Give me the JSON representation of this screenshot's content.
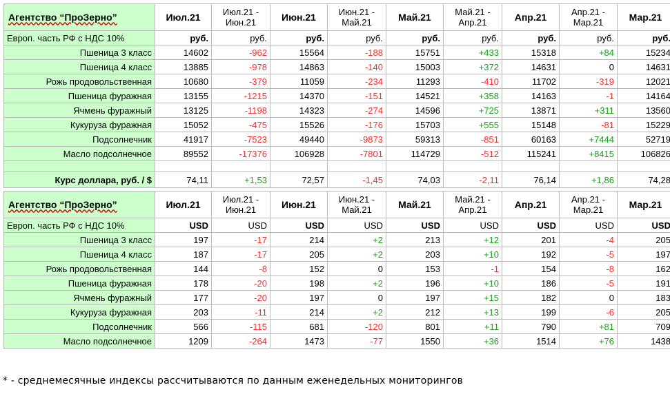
{
  "header": {
    "agency": "Агентство “ПроЗерно”",
    "columns": [
      "Июл.21",
      "Июл.21 -\nИюн.21",
      "Июн.21",
      "Июн.21 -\nМай.21",
      "Май.21",
      "Май.21 -\nАпр.21",
      "Апр.21",
      "Апр.21 -\nМар.21",
      "Мар.21"
    ]
  },
  "region_label": "Европ. часть РФ с НДС 10%",
  "rub_table": {
    "units": [
      "руб.",
      "руб.",
      "руб.",
      "руб.",
      "руб.",
      "руб.",
      "руб.",
      "руб.",
      "руб."
    ],
    "rows": [
      {
        "name": "Пшеница 3 класс",
        "cells": [
          "14602",
          "-962",
          "15564",
          "-188",
          "15751",
          "+433",
          "15318",
          "+84",
          "15234"
        ]
      },
      {
        "name": "Пшеница 4 класс",
        "cells": [
          "13885",
          "-978",
          "14863",
          "-140",
          "15003",
          "+372",
          "14631",
          "0",
          "14631"
        ]
      },
      {
        "name": "Рожь продовольственная",
        "cells": [
          "10680",
          "-379",
          "11059",
          "-234",
          "11293",
          "-410",
          "11702",
          "-319",
          "12021"
        ]
      },
      {
        "name": "Пшеница фуражная",
        "cells": [
          "13155",
          "-1215",
          "14370",
          "-151",
          "14521",
          "+358",
          "14163",
          "-1",
          "14164"
        ]
      },
      {
        "name": "Ячмень фуражный",
        "cells": [
          "13125",
          "-1198",
          "14323",
          "-274",
          "14596",
          "+725",
          "13871",
          "+311",
          "13560"
        ]
      },
      {
        "name": "Кукуруза фуражная",
        "cells": [
          "15052",
          "-475",
          "15526",
          "-176",
          "15703",
          "+555",
          "15148",
          "-81",
          "15229"
        ]
      },
      {
        "name": "Подсолнечник",
        "cells": [
          "41917",
          "-7523",
          "49440",
          "-9873",
          "59313",
          "-851",
          "60163",
          "+7444",
          "52719"
        ]
      },
      {
        "name": "Масло подсолнечное",
        "cells": [
          "89552",
          "-17376",
          "106928",
          "-7801",
          "114729",
          "-512",
          "115241",
          "+8415",
          "106826"
        ]
      }
    ]
  },
  "fx_row": {
    "name": "Курс доллара, руб. / $",
    "cells": [
      "74,11",
      "+1,53",
      "72,57",
      "-1,45",
      "74,03",
      "-2,11",
      "76,14",
      "+1,86",
      "74,28"
    ]
  },
  "usd_table": {
    "units": [
      "USD",
      "USD",
      "USD",
      "USD",
      "USD",
      "USD",
      "USD",
      "USD",
      "USD"
    ],
    "rows": [
      {
        "name": "Пшеница 3 класс",
        "cells": [
          "197",
          "-17",
          "214",
          "+2",
          "213",
          "+12",
          "201",
          "-4",
          "205"
        ]
      },
      {
        "name": "Пшеница 4 класс",
        "cells": [
          "187",
          "-17",
          "205",
          "+2",
          "203",
          "+10",
          "192",
          "-5",
          "197"
        ]
      },
      {
        "name": "Рожь продовольственная",
        "cells": [
          "144",
          "-8",
          "152",
          "0",
          "153",
          "-1",
          "154",
          "-8",
          "162"
        ]
      },
      {
        "name": "Пшеница фуражная",
        "cells": [
          "178",
          "-20",
          "198",
          "+2",
          "196",
          "+10",
          "186",
          "-5",
          "191"
        ]
      },
      {
        "name": "Ячмень фуражный",
        "cells": [
          "177",
          "-20",
          "197",
          "0",
          "197",
          "+15",
          "182",
          "0",
          "183"
        ]
      },
      {
        "name": "Кукуруза фуражная",
        "cells": [
          "203",
          "-11",
          "214",
          "+2",
          "212",
          "+13",
          "199",
          "-6",
          "205"
        ]
      },
      {
        "name": "Подсолнечник",
        "cells": [
          "566",
          "-115",
          "681",
          "-120",
          "801",
          "+11",
          "790",
          "+81",
          "709"
        ]
      },
      {
        "name": "Масло подсолнечное",
        "cells": [
          "1209",
          "-264",
          "1473",
          "-77",
          "1550",
          "+36",
          "1514",
          "+76",
          "1438"
        ]
      }
    ]
  },
  "footnote": "* - среднемесячные индексы рассчитываются по данным еженедельных мониторингов",
  "colors": {
    "label_bg": "#ccffcc",
    "negative": "#ff2a2a",
    "positive": "#16a316"
  }
}
